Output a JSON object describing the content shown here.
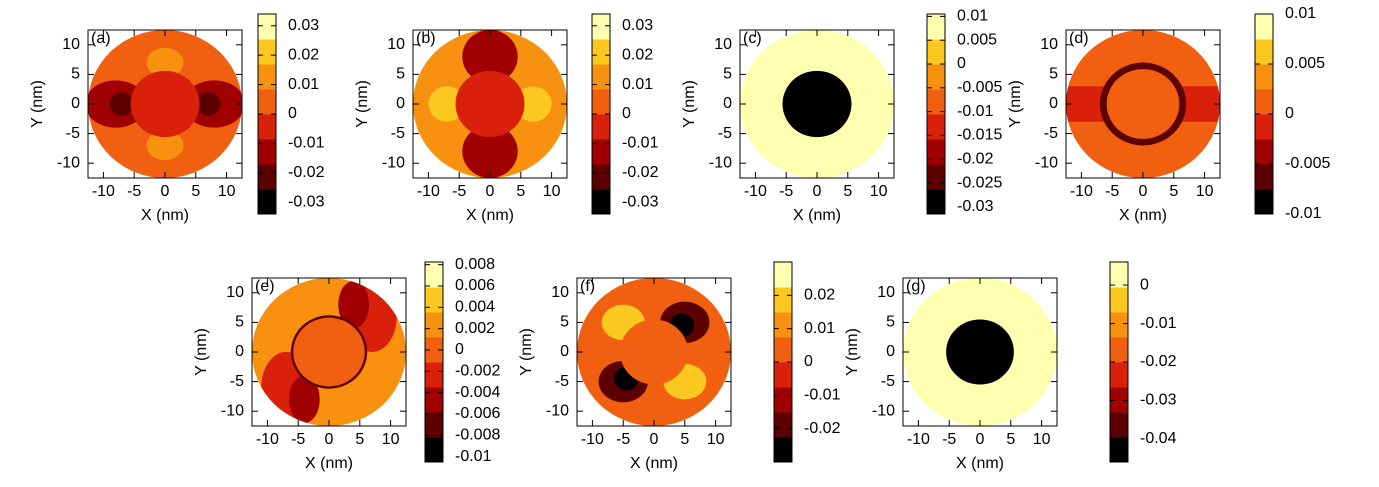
{
  "chart_data": [
    {
      "type": "contour",
      "title": "(a)",
      "xlabel": "X (nm)",
      "ylabel": "Y (nm)",
      "xlim": [
        -12.5,
        12.5
      ],
      "ylim": [
        -12.5,
        12.5
      ],
      "xticks": [
        -10,
        -5,
        0,
        5,
        10
      ],
      "yticks": [
        -10,
        -5,
        0,
        5,
        10
      ],
      "clim": [
        -0.034,
        0.034
      ],
      "cticks": [
        -0.03,
        -0.02,
        -0.01,
        0,
        0.01,
        0.02,
        0.03
      ],
      "colors": [
        "#000000",
        "#5c0000",
        "#a00000",
        "#d8200a",
        "#f06010",
        "#f89010",
        "#fcc820",
        "#ffffb0"
      ]
    },
    {
      "type": "contour",
      "title": "(b)",
      "xlabel": "X (nm)",
      "ylabel": "Y (nm)",
      "xlim": [
        -12.5,
        12.5
      ],
      "ylim": [
        -12.5,
        12.5
      ],
      "xticks": [
        -10,
        -5,
        0,
        5,
        10
      ],
      "yticks": [
        -10,
        -5,
        0,
        5,
        10
      ],
      "clim": [
        -0.034,
        0.034
      ],
      "cticks": [
        -0.03,
        -0.02,
        -0.01,
        0,
        0.01,
        0.02,
        0.03
      ],
      "colors": [
        "#000000",
        "#5c0000",
        "#a00000",
        "#d8200a",
        "#f06010",
        "#f89010",
        "#fcc820",
        "#ffffb0"
      ]
    },
    {
      "type": "contour",
      "title": "(c)",
      "xlabel": "X (nm)",
      "ylabel": "Y (nm)",
      "xlim": [
        -12.5,
        12.5
      ],
      "ylim": [
        -12.5,
        12.5
      ],
      "xticks": [
        -10,
        -5,
        0,
        5,
        10
      ],
      "yticks": [
        -10,
        -5,
        0,
        5,
        10
      ],
      "clim": [
        -0.0315,
        0.0105
      ],
      "cticks": [
        -0.03,
        -0.025,
        -0.02,
        -0.015,
        -0.01,
        -0.005,
        0,
        0.005,
        0.01
      ],
      "colors": [
        "#000000",
        "#5c0000",
        "#a00000",
        "#d8200a",
        "#f06010",
        "#f89010",
        "#fcc820",
        "#ffffb0"
      ]
    },
    {
      "type": "contour",
      "title": "(d)",
      "xlabel": "X (nm)",
      "ylabel": "Y (nm)",
      "xlim": [
        -12.5,
        12.5
      ],
      "ylim": [
        -12.5,
        12.5
      ],
      "xticks": [
        -10,
        -5,
        0,
        5,
        10
      ],
      "yticks": [
        -10,
        -5,
        0,
        5,
        10
      ],
      "clim": [
        -0.01,
        0.01
      ],
      "cticks": [
        -0.01,
        -0.005,
        0,
        0.005,
        0.01
      ],
      "colors": [
        "#000000",
        "#5c0000",
        "#a00000",
        "#d8200a",
        "#f06010",
        "#f89010",
        "#fcc820",
        "#ffffb0"
      ]
    },
    {
      "type": "contour",
      "title": "(e)",
      "xlabel": "X (nm)",
      "ylabel": "Y (nm)",
      "xlim": [
        -12.5,
        12.5
      ],
      "ylim": [
        -12.5,
        12.5
      ],
      "xticks": [
        -10,
        -5,
        0,
        5,
        10
      ],
      "yticks": [
        -10,
        -5,
        0,
        5,
        10
      ],
      "clim": [
        -0.0105,
        0.00825
      ],
      "cticks": [
        -0.01,
        -0.008,
        -0.006,
        -0.004,
        -0.002,
        0,
        0.002,
        0.004,
        0.006,
        0.008
      ],
      "colors": [
        "#000000",
        "#5c0000",
        "#a00000",
        "#d8200a",
        "#f06010",
        "#f89010",
        "#fcc820",
        "#ffffb0"
      ]
    },
    {
      "type": "contour",
      "title": "(f)",
      "xlabel": "X (nm)",
      "ylabel": "Y (nm)",
      "xlim": [
        -12.5,
        12.5
      ],
      "ylim": [
        -12.5,
        12.5
      ],
      "xticks": [
        -10,
        -5,
        0,
        5,
        10
      ],
      "yticks": [
        -10,
        -5,
        0,
        5,
        10
      ],
      "clim": [
        -0.03,
        0.03
      ],
      "cticks": [
        -0.02,
        -0.01,
        0,
        0.01,
        0.02
      ],
      "colors": [
        "#000000",
        "#5c0000",
        "#a00000",
        "#d8200a",
        "#f06010",
        "#f89010",
        "#fcc820",
        "#ffffb0"
      ]
    },
    {
      "type": "contour",
      "title": "(g)",
      "xlabel": "X (nm)",
      "ylabel": "Y (nm)",
      "xlim": [
        -12.5,
        12.5
      ],
      "ylim": [
        -12.5,
        12.5
      ],
      "xticks": [
        -10,
        -5,
        0,
        5,
        10
      ],
      "yticks": [
        -10,
        -5,
        0,
        5,
        10
      ],
      "clim": [
        -0.046,
        0.006
      ],
      "cticks": [
        -0.04,
        -0.03,
        -0.02,
        -0.01,
        0
      ],
      "colors": [
        "#000000",
        "#5c0000",
        "#a00000",
        "#d8200a",
        "#f06010",
        "#f89010",
        "#fcc820",
        "#ffffb0"
      ]
    }
  ]
}
